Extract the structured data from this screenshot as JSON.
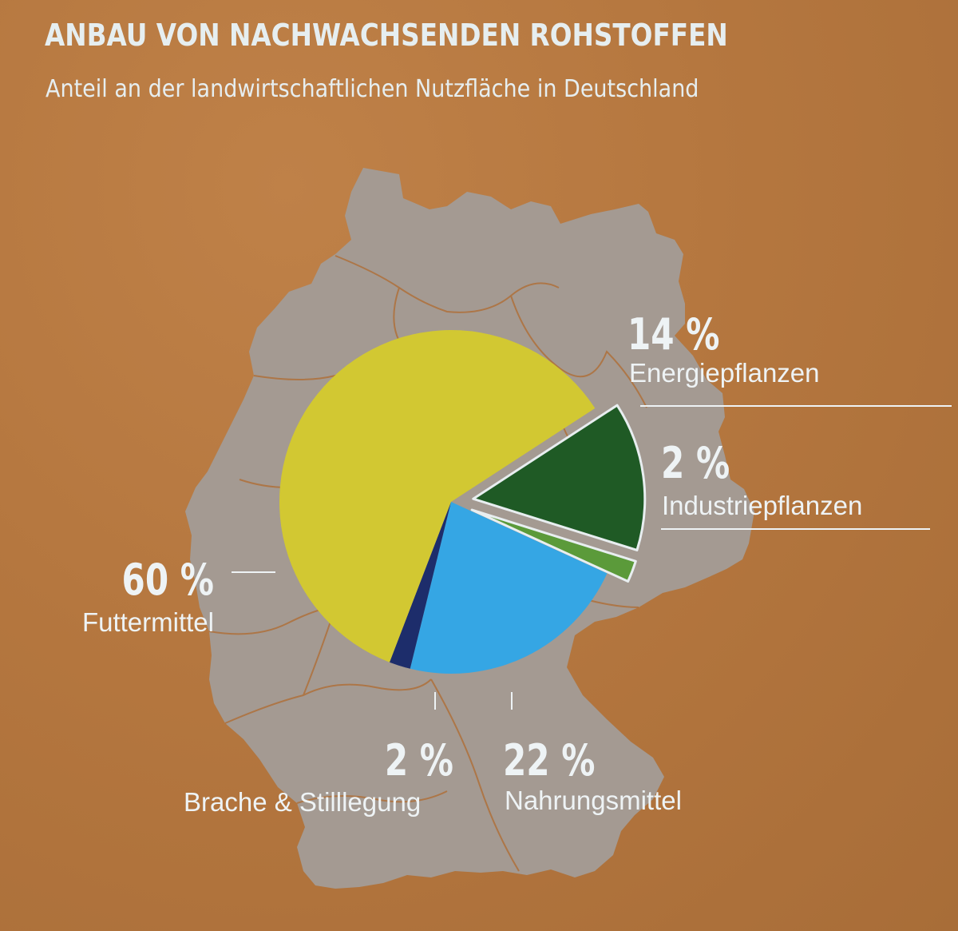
{
  "header": {
    "title": "ANBAU VON NACHWACHSENDEN ROHSTOFFEN",
    "subtitle": "Anteil an der landwirtschaftlichen Nutzfläche in Deutschland"
  },
  "chart_data": {
    "type": "pie",
    "title": "ANBAU VON NACHWACHSENDEN ROHSTOFFEN",
    "subtitle": "Anteil an der landwirtschaftlichen Nutzfläche in Deutschland",
    "unit": "%",
    "slices": [
      {
        "label": "Energiepflanzen",
        "value": 14,
        "display": "14 %",
        "color": "#1f5a25",
        "exploded": true
      },
      {
        "label": "Industriepflanzen",
        "value": 2,
        "display": "2 %",
        "color": "#5b9a3a",
        "exploded": true
      },
      {
        "label": "Nahrungsmittel",
        "value": 22,
        "display": "22 %",
        "color": "#35a6e4",
        "exploded": false
      },
      {
        "label": "Brache & Stilllegung",
        "value": 2,
        "display": "2 %",
        "color": "#1d2d6b",
        "exploded": false
      },
      {
        "label": "Futtermittel",
        "value": 60,
        "display": "60 %",
        "color": "#d2c832",
        "exploded": false
      }
    ],
    "background_map": "Germany map with state borders"
  }
}
